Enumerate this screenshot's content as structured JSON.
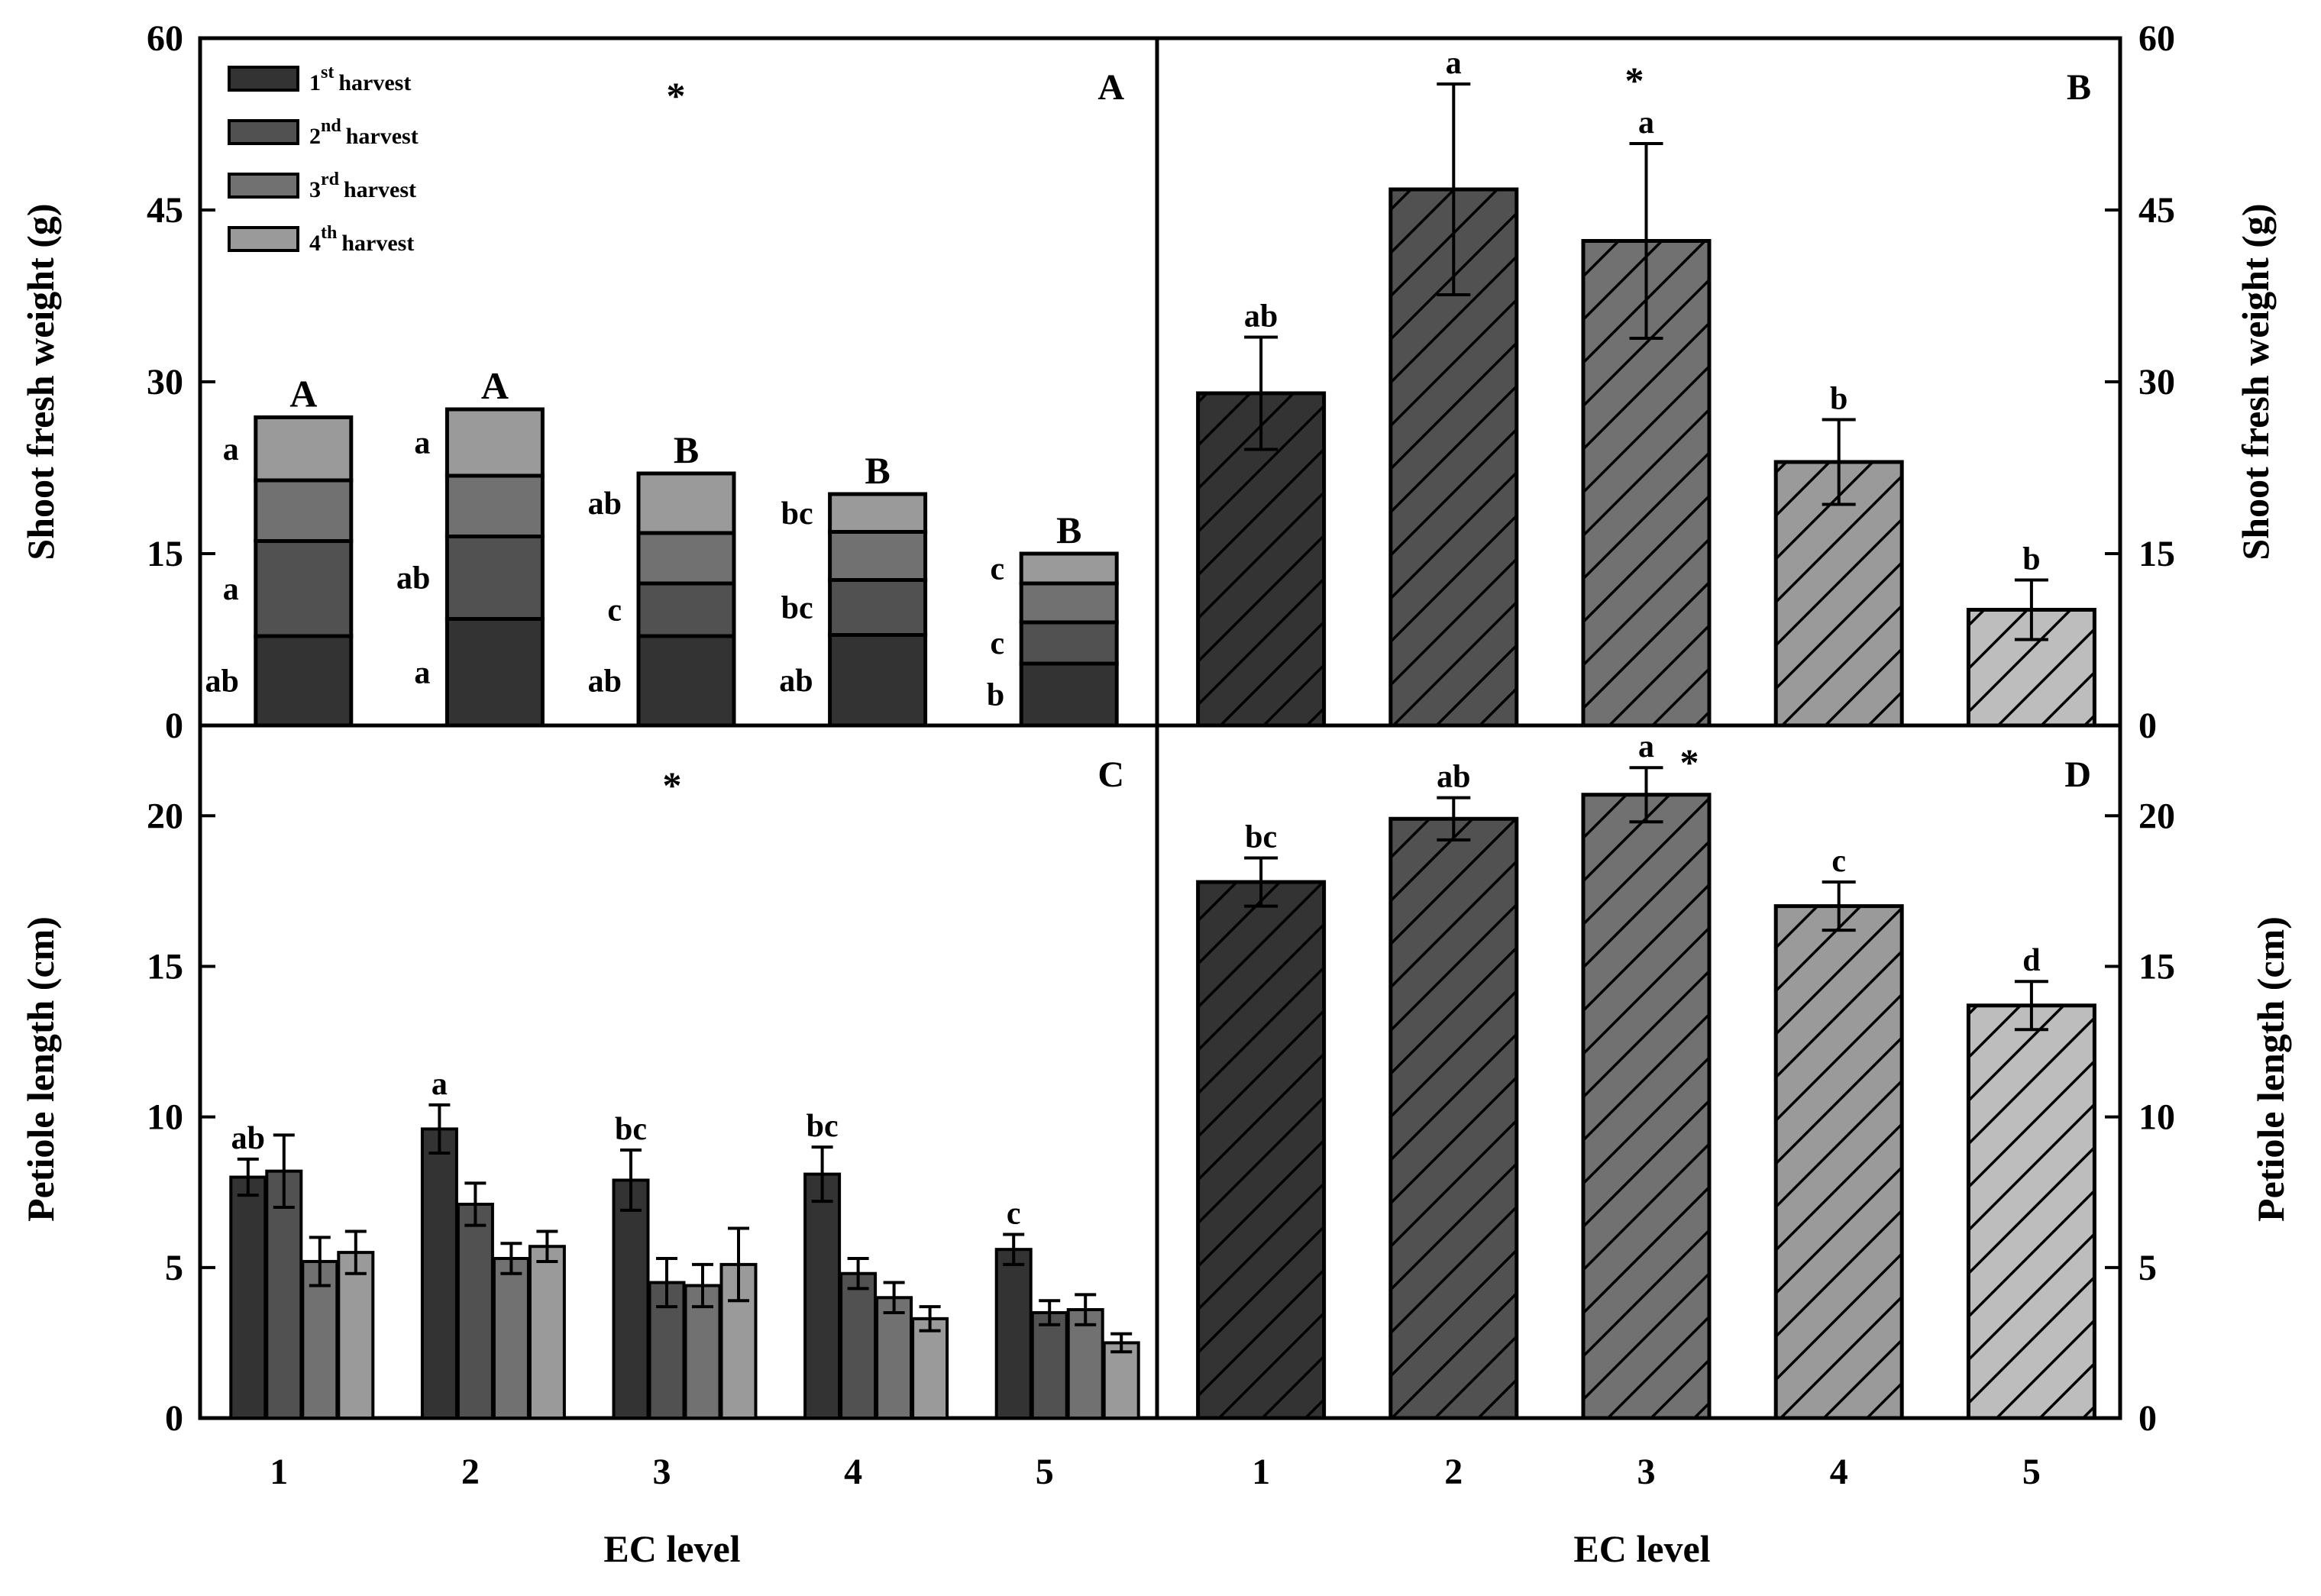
{
  "colors": {
    "harvest": [
      "#333333",
      "#515151",
      "#717171",
      "#9a9a9a"
    ],
    "ec": [
      "#333333",
      "#515151",
      "#717171",
      "#9a9a9a",
      "#bdbdbd"
    ]
  },
  "legend": [
    {
      "num": "1",
      "sup": "st",
      "word": "harvest"
    },
    {
      "num": "2",
      "sup": "nd",
      "word": "harvest"
    },
    {
      "num": "3",
      "sup": "rd",
      "word": "harvest"
    },
    {
      "num": "4",
      "sup": "th",
      "word": "harvest"
    }
  ],
  "chart_data": [
    {
      "panel": "A",
      "type": "bar",
      "stacked": true,
      "ylabel": "Shoot fresh weight (g)",
      "ylim": [
        0,
        60
      ],
      "yticks": [
        0,
        15,
        30,
        45,
        60
      ],
      "categories": [
        "1",
        "2",
        "3",
        "4",
        "5"
      ],
      "star": "*",
      "series": [
        {
          "name": "1st harvest",
          "values": [
            7.8,
            9.3,
            7.8,
            7.9,
            5.4
          ]
        },
        {
          "name": "2nd harvest",
          "values": [
            8.3,
            7.2,
            4.6,
            4.8,
            3.6
          ]
        },
        {
          "name": "3rd harvest",
          "values": [
            5.3,
            5.3,
            4.4,
            4.2,
            3.4
          ]
        },
        {
          "name": "4th harvest",
          "values": [
            5.5,
            5.8,
            5.2,
            3.3,
            2.6
          ]
        }
      ],
      "total_letters": [
        "A",
        "A",
        "B",
        "B",
        "B"
      ],
      "segment_letters": [
        [
          "ab",
          "a",
          "",
          "a"
        ],
        [
          "a",
          "ab",
          "",
          "a"
        ],
        [
          "ab",
          "c",
          "",
          "ab"
        ],
        [
          "ab",
          "bc",
          "",
          "bc"
        ],
        [
          "b",
          "c",
          "",
          "c"
        ]
      ]
    },
    {
      "panel": "B",
      "type": "bar",
      "hatched": true,
      "ylabel": "Shoot fresh weight (g)",
      "ylim": [
        0,
        60
      ],
      "yticks": [
        0,
        15,
        30,
        45,
        60
      ],
      "categories": [
        "1",
        "2",
        "3",
        "4",
        "5"
      ],
      "star": "*",
      "values": [
        29,
        46.8,
        42.3,
        23,
        10.1
      ],
      "errors": [
        4.9,
        9.2,
        8.5,
        3.7,
        2.6
      ],
      "letters": [
        "ab",
        "a",
        "a",
        "b",
        "b"
      ]
    },
    {
      "panel": "C",
      "type": "bar",
      "grouped": true,
      "ylabel": "Petiole length (cm)",
      "xlabel": "EC level",
      "ylim": [
        0,
        23
      ],
      "yticks": [
        0,
        5,
        10,
        15,
        20
      ],
      "categories": [
        "1",
        "2",
        "3",
        "4",
        "5"
      ],
      "star": "*",
      "series": [
        {
          "name": "1st harvest",
          "values": [
            8.0,
            9.6,
            7.9,
            8.1,
            5.6
          ],
          "errors": [
            0.6,
            0.8,
            1.0,
            0.9,
            0.5
          ]
        },
        {
          "name": "2nd harvest",
          "values": [
            8.2,
            7.1,
            4.5,
            4.8,
            3.5
          ],
          "errors": [
            1.2,
            0.7,
            0.8,
            0.5,
            0.4
          ]
        },
        {
          "name": "3rd harvest",
          "values": [
            5.2,
            5.3,
            4.4,
            4.0,
            3.6
          ],
          "errors": [
            0.8,
            0.5,
            0.7,
            0.5,
            0.5
          ]
        },
        {
          "name": "4th harvest",
          "values": [
            5.5,
            5.7,
            5.1,
            3.3,
            2.5
          ],
          "errors": [
            0.7,
            0.5,
            1.2,
            0.4,
            0.3
          ]
        }
      ],
      "letters": [
        "ab",
        "a",
        "bc",
        "bc",
        "c"
      ]
    },
    {
      "panel": "D",
      "type": "bar",
      "hatched": true,
      "ylabel": "Petiole length (cm)",
      "xlabel": "EC level",
      "ylim": [
        0,
        23
      ],
      "yticks": [
        0,
        5,
        10,
        15,
        20
      ],
      "categories": [
        "1",
        "2",
        "3",
        "4",
        "5"
      ],
      "star": "*",
      "values": [
        17.8,
        19.9,
        20.7,
        17.0,
        13.7
      ],
      "errors": [
        0.8,
        0.7,
        0.9,
        0.8,
        0.8
      ],
      "letters": [
        "bc",
        "ab",
        "a",
        "c",
        "d"
      ]
    }
  ]
}
